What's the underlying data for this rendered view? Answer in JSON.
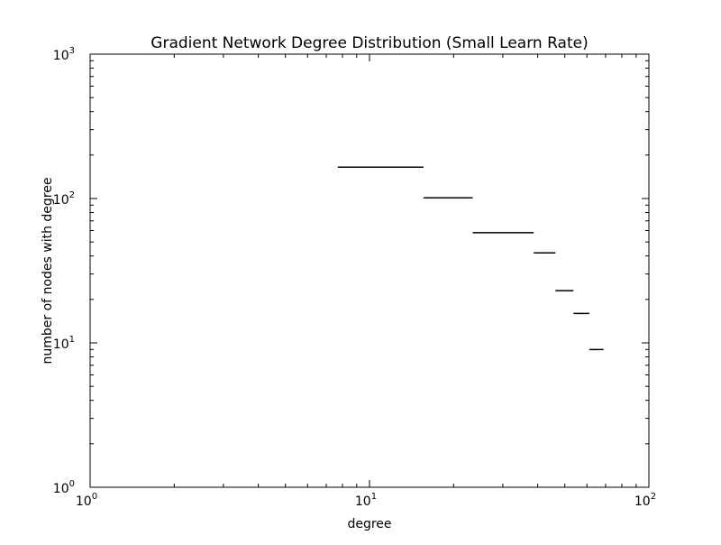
{
  "chart_data": {
    "type": "line",
    "title": "Gradient Network Degree Distribution (Small Learn Rate)",
    "xlabel": "degree",
    "ylabel": "number of nodes with degree",
    "xscale": "log",
    "yscale": "log",
    "xlim": [
      1,
      100
    ],
    "ylim": [
      1,
      1000
    ],
    "grid": false,
    "x_ticks": [
      {
        "base": "10",
        "exp": "0",
        "value": 1
      },
      {
        "base": "10",
        "exp": "1",
        "value": 10
      },
      {
        "base": "10",
        "exp": "2",
        "value": 100
      }
    ],
    "y_ticks": [
      {
        "base": "10",
        "exp": "0",
        "value": 1
      },
      {
        "base": "10",
        "exp": "1",
        "value": 10
      },
      {
        "base": "10",
        "exp": "2",
        "value": 100
      },
      {
        "base": "10",
        "exp": "3",
        "value": 1000
      }
    ],
    "series": [
      {
        "color": "#000000",
        "segments": [
          {
            "x0": 7.7,
            "x1": 15.6,
            "y": 165
          },
          {
            "x0": 15.6,
            "x1": 23.4,
            "y": 101
          },
          {
            "x0": 23.4,
            "x1": 38.7,
            "y": 58
          },
          {
            "x0": 38.7,
            "x1": 46.3,
            "y": 42
          },
          {
            "x0": 46.3,
            "x1": 53.7,
            "y": 23
          },
          {
            "x0": 53.7,
            "x1": 61.2,
            "y": 16
          },
          {
            "x0": 61.2,
            "x1": 68.8,
            "y": 9
          }
        ]
      }
    ]
  }
}
